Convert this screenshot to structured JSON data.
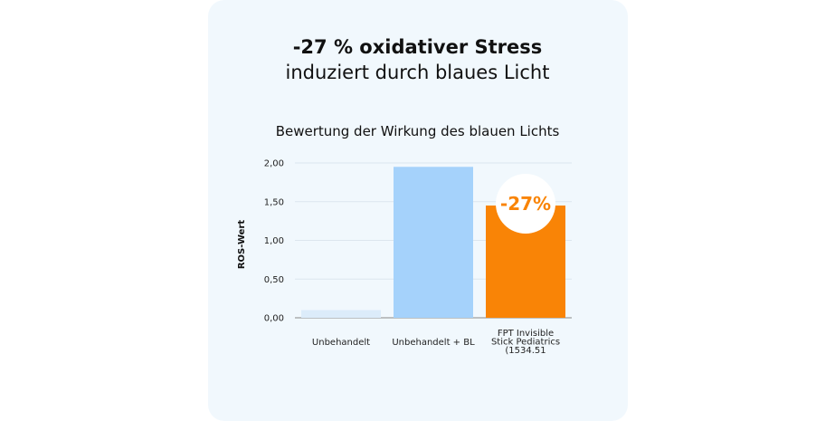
{
  "headline": {
    "line1": "-27 % oxidativer Stress",
    "line2": "induziert durch blaues Licht"
  },
  "chart_data": {
    "type": "bar",
    "title": "Bewertung der Wirkung des blauen Lichts",
    "ylabel": "ROS-Wert",
    "xlabel": "",
    "ylim": [
      0,
      2.0
    ],
    "yticks": [
      "0,00",
      "0,50",
      "1,00",
      "1,50",
      "2,00"
    ],
    "ytick_values": [
      0,
      0.5,
      1.0,
      1.5,
      2.0
    ],
    "grid": true,
    "categories": [
      [
        "Unbehandelt"
      ],
      [
        "Unbehandelt + BL"
      ],
      [
        "FPT Invisible",
        "Stick Pediatrics",
        "(1534.51"
      ]
    ],
    "values": [
      0.1,
      1.95,
      1.45
    ],
    "bar_colors": [
      "#dcecfa",
      "#a5d2fb",
      "#f98406"
    ],
    "annotation": {
      "text": "-27%",
      "bar_index": 2,
      "text_color": "#f98406",
      "circle_color": "#ffffff"
    }
  },
  "colors": {
    "card_background": "#f1f8fd",
    "grid": "#dce6ee",
    "axis": "#888888"
  }
}
